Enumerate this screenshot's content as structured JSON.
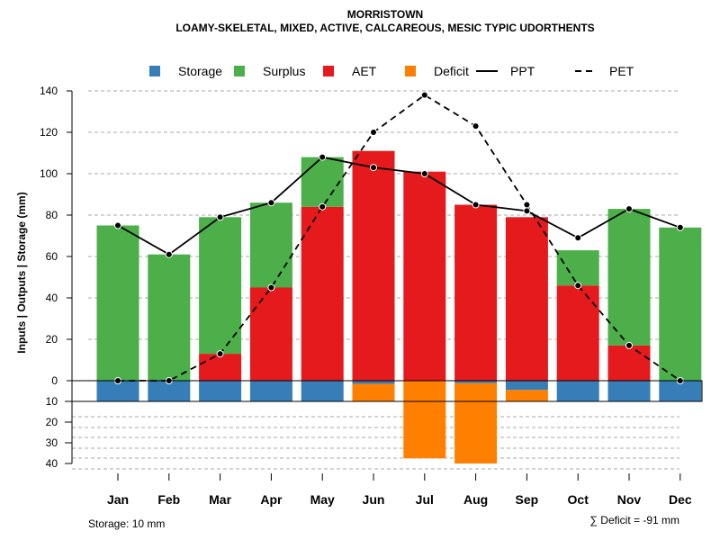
{
  "chart_data": {
    "type": "bar",
    "title": "MORRISTOWN",
    "subtitle": "LOAMY-SKELETAL, MIXED, ACTIVE, CALCAREOUS, MESIC TYPIC UDORTHENTS",
    "ylabel": "Inputs | Outputs | Storage    (mm)",
    "categories": [
      "Jan",
      "Feb",
      "Mar",
      "Apr",
      "May",
      "Jun",
      "Jul",
      "Aug",
      "Sep",
      "Oct",
      "Nov",
      "Dec"
    ],
    "ylim": [
      0,
      140
    ],
    "yticks": [
      "0",
      "20",
      "40",
      "60",
      "80",
      "100",
      "120",
      "140"
    ],
    "lower_ylim": [
      0,
      40
    ],
    "lower_yticks": [
      "10",
      "20",
      "30",
      "40"
    ],
    "legend": {
      "position": "top",
      "entries": [
        {
          "label": "Storage",
          "kind": "box",
          "color": "#377EB8"
        },
        {
          "label": "Surplus",
          "kind": "box",
          "color": "#4DAF4A"
        },
        {
          "label": "AET",
          "kind": "box",
          "color": "#E41A1C"
        },
        {
          "label": "Deficit",
          "kind": "box",
          "color": "#FF7F00"
        },
        {
          "label": "PPT",
          "kind": "solid"
        },
        {
          "label": "PET",
          "kind": "dashed"
        }
      ]
    },
    "series": [
      {
        "name": "AET",
        "color": "#E41A1C",
        "values": [
          0,
          0,
          13,
          45,
          84,
          111,
          101,
          85,
          79,
          46,
          17,
          0
        ]
      },
      {
        "name": "Surplus",
        "color": "#4DAF4A",
        "values": [
          75,
          61,
          66,
          41,
          24,
          0,
          0,
          0,
          0,
          17,
          66,
          74
        ]
      },
      {
        "name": "Storage",
        "color": "#377EB8",
        "values": [
          10,
          10,
          10,
          10,
          10,
          1.5,
          0,
          1.2,
          4.5,
          10,
          10,
          10
        ]
      },
      {
        "name": "Deficit",
        "color": "#FF7F00",
        "values": [
          0,
          0,
          0,
          0,
          0,
          8.5,
          37.5,
          38.8,
          5.5,
          0,
          0,
          0
        ]
      },
      {
        "name": "PPT",
        "style": "solid",
        "values": [
          75,
          61,
          79,
          86,
          108,
          103,
          100,
          85,
          82,
          69,
          83,
          74
        ]
      },
      {
        "name": "PET",
        "style": "dashed",
        "values": [
          0,
          0,
          13,
          45,
          84,
          120,
          138,
          123,
          85,
          46,
          17,
          0
        ]
      }
    ],
    "storage_capacity": 10,
    "footer_left": "Storage: 10 mm",
    "footer_right": "∑ Deficit = -91 mm",
    "grid": true
  }
}
